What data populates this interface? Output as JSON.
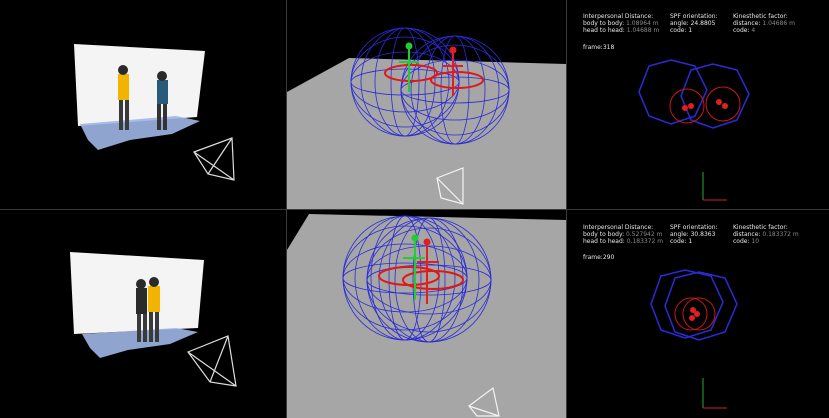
{
  "colors": {
    "background": "#000000",
    "floor": "#a6a6a6",
    "sphere_wire": "#2b2bd6",
    "ring_red": "#e01818",
    "skeleton_green": "#22cc33",
    "skeleton_red": "#e02020",
    "floor_points": "#9fb6e6"
  },
  "panels": [
    {
      "interpersonal": {
        "title": "Interpersonal Distance:",
        "body_label": "body to body:",
        "body_value": "1.08964 m",
        "head_label": "head to head:",
        "head_value": "1.04688 m"
      },
      "spf": {
        "title": "SPF orientation:",
        "angle_label": "angle:",
        "angle_value": "24.8805",
        "code_label": "code:",
        "code_value": "1"
      },
      "kinesthetic": {
        "title": "Kinesthetic factor:",
        "distance_label": "distance:",
        "distance_value": "1.04686 m",
        "code_label": "code:",
        "code_value": "4"
      },
      "frame": "frame:318"
    },
    {
      "interpersonal": {
        "title": "Interpersonal Distance:",
        "body_label": "body to body:",
        "body_value": "0.527942 m",
        "head_label": "head to head:",
        "head_value": "0.183372 m"
      },
      "spf": {
        "title": "SPF orientation:",
        "angle_label": "angle:",
        "angle_value": "30.8363",
        "code_label": "code:",
        "code_value": "1"
      },
      "kinesthetic": {
        "title": "Kinesthetic factor:",
        "distance_label": "distance:",
        "distance_value": "0.183372 m",
        "code_label": "code:",
        "code_value": "10"
      },
      "frame": "frame:290"
    }
  ]
}
